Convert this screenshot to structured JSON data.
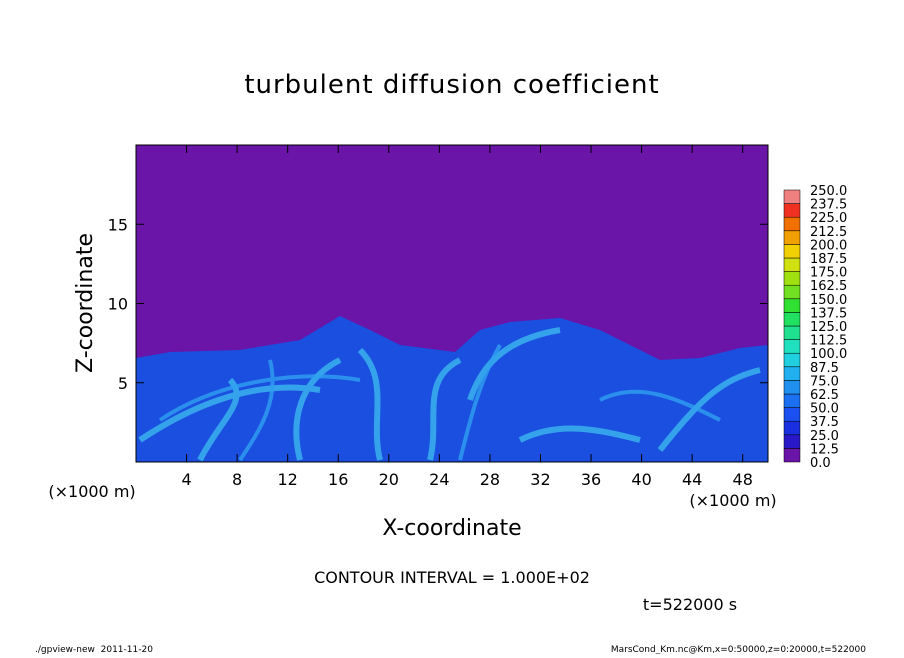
{
  "chart_data": {
    "type": "contour",
    "title": "turbulent diffusion coefficient",
    "x_label": "X-coordinate",
    "y_label": "Z-coordinate",
    "x_unit": "(×1000 m)",
    "y_unit": "(×1000 m)",
    "xlim": [
      0,
      50
    ],
    "ylim": [
      0,
      20
    ],
    "xticks": [
      4,
      8,
      12,
      16,
      20,
      24,
      28,
      32,
      36,
      40,
      44,
      48
    ],
    "yticks": [
      5,
      10,
      15
    ],
    "colorbar": {
      "ticks": [
        {
          "value": 0,
          "label": "0.0"
        },
        {
          "value": 12.5,
          "label": "12.5"
        },
        {
          "value": 25,
          "label": "25.0"
        },
        {
          "value": 37.5,
          "label": "37.5"
        },
        {
          "value": 50,
          "label": "50.0"
        },
        {
          "value": 62.5,
          "label": "62.5"
        },
        {
          "value": 75,
          "label": "75.0"
        },
        {
          "value": 87.5,
          "label": "87.5"
        },
        {
          "value": 100,
          "label": "100.0"
        },
        {
          "value": 112.5,
          "label": "112.5"
        },
        {
          "value": 125,
          "label": "125.0"
        },
        {
          "value": 137.5,
          "label": "137.5"
        },
        {
          "value": 150,
          "label": "150.0"
        },
        {
          "value": 162.5,
          "label": "162.5"
        },
        {
          "value": 175,
          "label": "175.0"
        },
        {
          "value": 187.5,
          "label": "187.5"
        },
        {
          "value": 200,
          "label": "200.0"
        },
        {
          "value": 212.5,
          "label": "212.5"
        },
        {
          "value": 225,
          "label": "225.0"
        },
        {
          "value": 237.5,
          "label": "237.5"
        },
        {
          "value": 250,
          "label": "250.0"
        }
      ],
      "colors": [
        "#6a14a8",
        "#2818c8",
        "#1a30e0",
        "#1a50f0",
        "#1a70f0",
        "#2090f0",
        "#20b0f0",
        "#20d0e0",
        "#20e0c0",
        "#20e090",
        "#20e060",
        "#30e030",
        "#70e020",
        "#a0e010",
        "#d0e010",
        "#f0d000",
        "#f0a000",
        "#f07000",
        "#f03020",
        "#f08080"
      ]
    },
    "annotation": "CONTOUR INTERVAL = 1.000E+02",
    "time": "t=522000 s",
    "footer_left": "./gpview-new  2011-11-20",
    "footer_right": "MarsCond_Km.nc@Km,x=0:50000,z=0:20000,t=522000"
  }
}
